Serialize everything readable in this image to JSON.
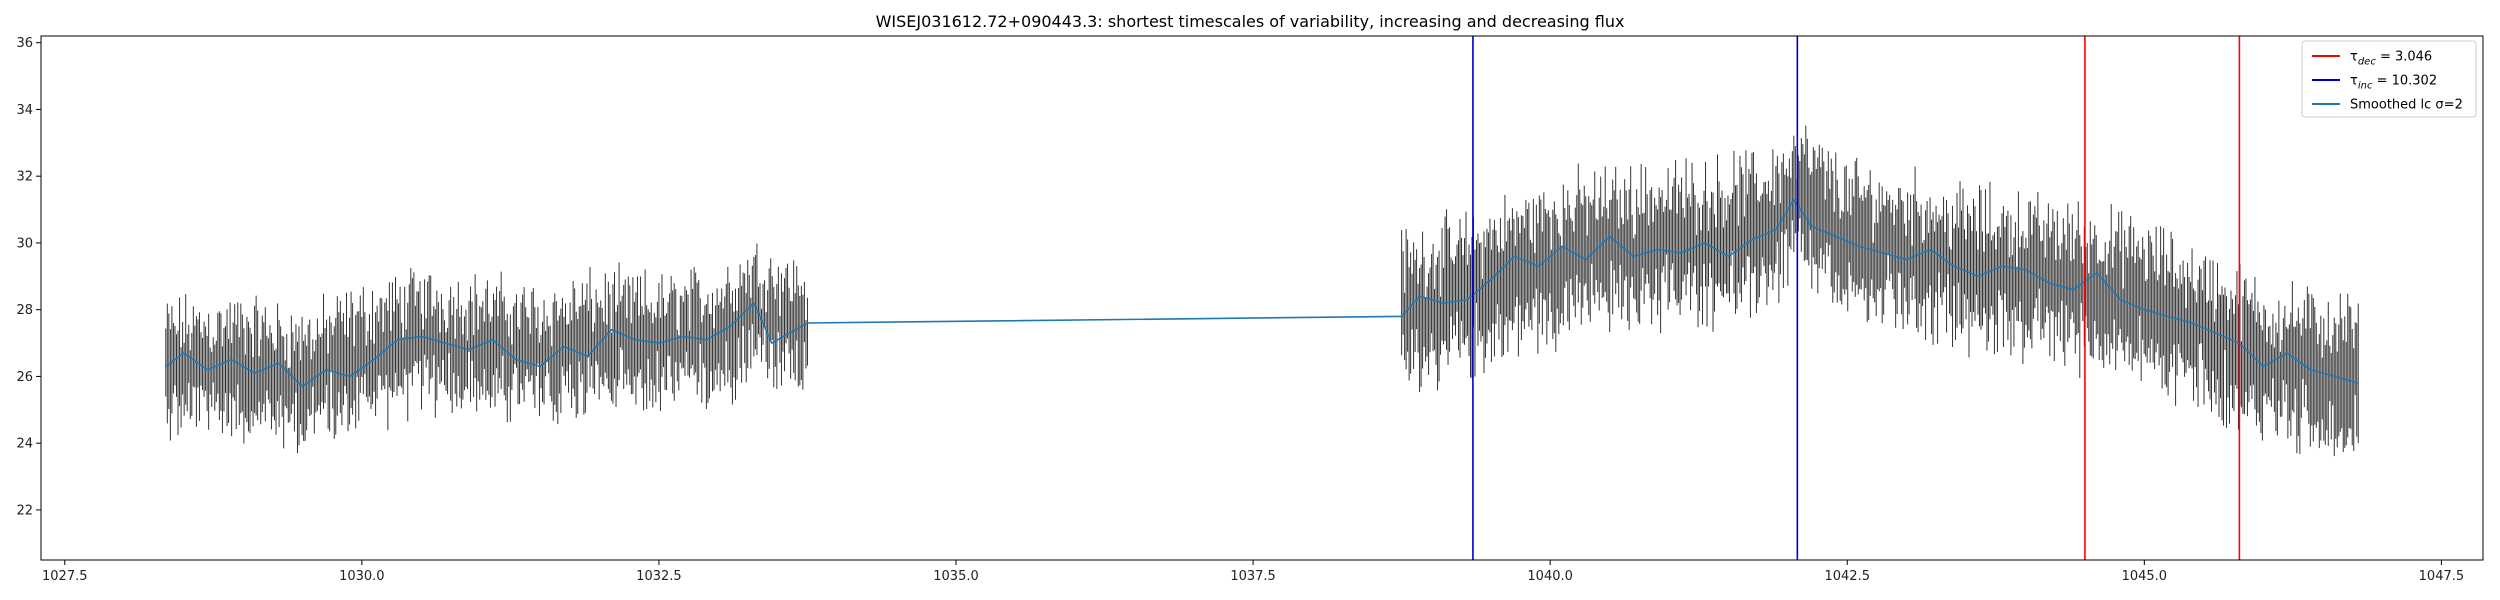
{
  "chart_data": {
    "type": "line",
    "title": "WISEJ031612.72+090443.3: shortest timescales of variability, increasing and decreasing flux",
    "xlabel": "",
    "ylabel": "",
    "xlim": [
      1027.3,
      1047.85
    ],
    "ylim": [
      20.5,
      36.2
    ],
    "xticks": [
      1027.5,
      1030.0,
      1032.5,
      1035.0,
      1037.5,
      1040.0,
      1042.5,
      1045.0,
      1047.5
    ],
    "xtick_labels": [
      "1027.5",
      "1030.0",
      "1032.5",
      "1035.0",
      "1037.5",
      "1040.0",
      "1042.5",
      "1045.0",
      "1047.5"
    ],
    "yticks": [
      22,
      24,
      26,
      28,
      30,
      32,
      34,
      36
    ],
    "ytick_labels": [
      "22",
      "24",
      "26",
      "28",
      "30",
      "32",
      "34",
      "36"
    ],
    "grid": false,
    "legend_position": "top-right",
    "error_bars": {
      "name": "",
      "color": "#333333",
      "segments": [
        {
          "x_start": 1028.35,
          "x_end": 1033.75,
          "trend_x": [
            1028.35,
            1029.0,
            1029.5,
            1030.0,
            1030.5,
            1031.0,
            1031.5,
            1032.0,
            1032.5,
            1033.0,
            1033.3,
            1033.75
          ],
          "trend_y": [
            26.2,
            26.3,
            25.9,
            26.6,
            27.1,
            26.9,
            26.6,
            27.0,
            26.9,
            27.2,
            28.0,
            27.4
          ],
          "half_height": 1.5,
          "count": 420
        },
        {
          "x_start": 1038.75,
          "x_end": 1046.8,
          "trend_x": [
            1038.75,
            1039.3,
            1039.8,
            1040.3,
            1040.8,
            1041.3,
            1041.8,
            1042.1,
            1042.5,
            1043.0,
            1043.5,
            1044.0,
            1044.5,
            1045.0,
            1045.5,
            1046.0,
            1046.8
          ],
          "trend_y": [
            27.9,
            28.4,
            29.2,
            29.7,
            29.9,
            30.0,
            30.3,
            31.2,
            30.0,
            29.7,
            29.2,
            29.0,
            28.7,
            28.2,
            27.4,
            26.4,
            25.9
          ],
          "half_height": 1.8,
          "count": 640
        }
      ]
    },
    "series": [
      {
        "name": "Smoothed lc σ=2",
        "color": "#1f77b4",
        "x": [
          1028.35,
          1028.5,
          1028.7,
          1028.9,
          1029.1,
          1029.3,
          1029.5,
          1029.7,
          1029.9,
          1030.1,
          1030.3,
          1030.5,
          1030.7,
          1030.9,
          1031.1,
          1031.3,
          1031.5,
          1031.7,
          1031.9,
          1032.1,
          1032.3,
          1032.5,
          1032.7,
          1032.9,
          1033.1,
          1033.3,
          1033.45,
          1033.6,
          1033.75,
          1038.75,
          1038.9,
          1039.1,
          1039.3,
          1039.5,
          1039.7,
          1039.9,
          1040.1,
          1040.3,
          1040.5,
          1040.7,
          1040.9,
          1041.1,
          1041.3,
          1041.5,
          1041.7,
          1041.9,
          1042.05,
          1042.2,
          1042.4,
          1042.6,
          1042.8,
          1043.0,
          1043.2,
          1043.4,
          1043.6,
          1043.8,
          1044.0,
          1044.2,
          1044.4,
          1044.6,
          1044.8,
          1045.0,
          1045.2,
          1045.4,
          1045.6,
          1045.8,
          1046.0,
          1046.2,
          1046.4,
          1046.6,
          1046.8
        ],
        "y": [
          26.3,
          26.7,
          26.2,
          26.5,
          26.1,
          26.4,
          25.7,
          26.2,
          26.0,
          26.5,
          27.1,
          27.2,
          27.0,
          26.8,
          27.1,
          26.5,
          26.3,
          26.9,
          26.6,
          27.4,
          27.1,
          27.0,
          27.2,
          27.1,
          27.5,
          28.2,
          27.0,
          27.3,
          27.6,
          27.8,
          28.4,
          28.2,
          28.3,
          28.9,
          29.6,
          29.3,
          29.9,
          29.5,
          30.2,
          29.6,
          29.8,
          29.7,
          30.0,
          29.6,
          30.1,
          30.4,
          31.3,
          30.5,
          30.2,
          29.9,
          29.7,
          29.5,
          29.8,
          29.3,
          29.0,
          29.3,
          29.2,
          28.8,
          28.6,
          29.1,
          28.3,
          28.0,
          27.8,
          27.6,
          27.3,
          27.0,
          26.3,
          26.7,
          26.2,
          26.0,
          25.8
        ]
      }
    ],
    "vlines": [
      {
        "name": "τ_dec = 3.046",
        "color": "#ff0000",
        "x": [
          1044.5,
          1045.8
        ]
      },
      {
        "name": "τ_inc = 10.302",
        "color": "#0000cc",
        "x": [
          1039.35,
          1042.08
        ]
      }
    ],
    "legend": [
      {
        "symbol": "τ",
        "sub": "dec",
        "rest": " = 3.046",
        "color": "#ff0000"
      },
      {
        "symbol": "τ",
        "sub": "inc",
        "rest": " = 10.302",
        "color": "#0000cc"
      },
      {
        "symbol": "",
        "sub": "",
        "rest": "Smoothed lc σ=2",
        "color": "#1f77b4"
      }
    ]
  }
}
